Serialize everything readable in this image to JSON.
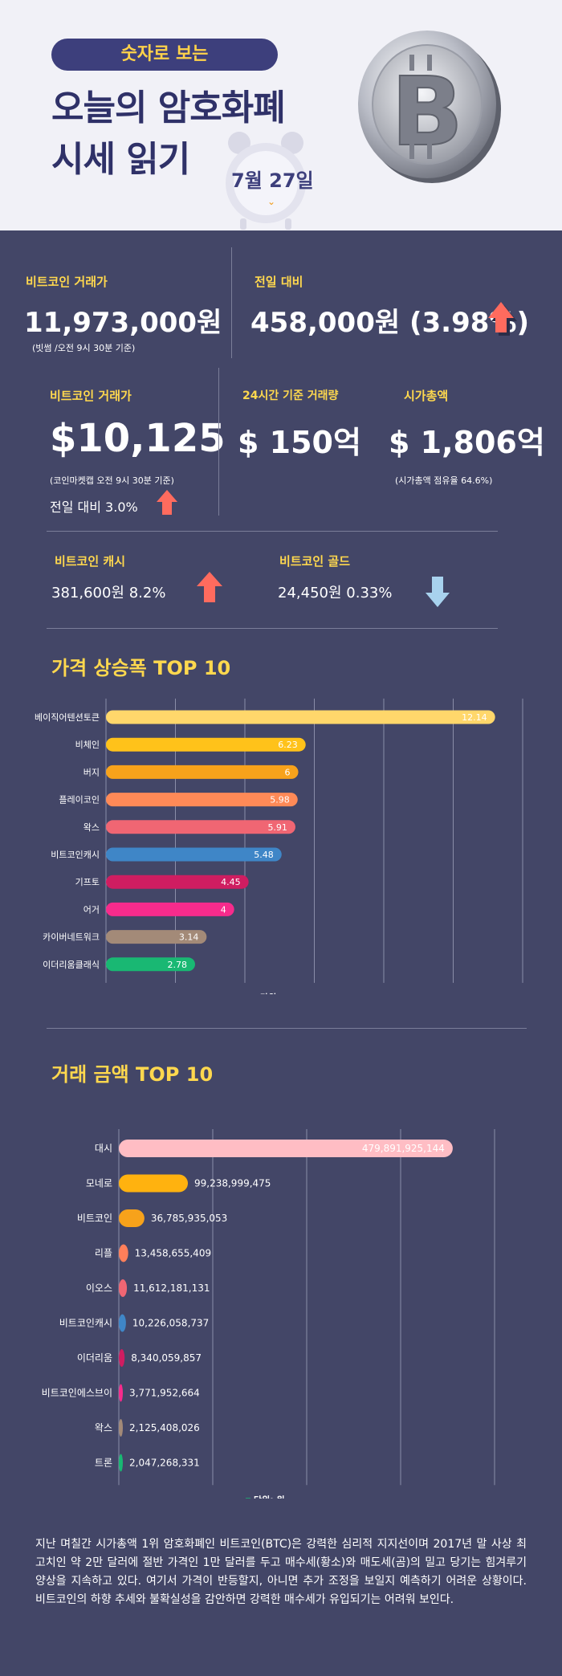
{
  "header": {
    "pill": "숫자로 보는",
    "title_line1": "오늘의 암호화폐",
    "title_line2": "시세 읽기",
    "date": "7월 27일"
  },
  "stats": {
    "btc_krw_label": "비트코인 거래가",
    "btc_krw_value": "11,973,000원",
    "btc_krw_note": "(빗썸 /오전 9시 30분 기준)",
    "prev_label": "전일 대비",
    "prev_value": "458,000원 (3.98%)",
    "btc_usd_label": "비트코인 거래가",
    "btc_usd_value": "$10,125",
    "btc_usd_note": "(코인마켓캡 오전 9시 30분 기준)",
    "btc_usd_change": "전일 대비 3.0%",
    "vol_label": "24시간 기준 거래량",
    "vol_value": "$ 150억",
    "cap_label": "시가총액",
    "cap_value": "$ 1,806억",
    "cap_note": "(시가총액 점유율 64.6%)",
    "cash_label": "비트코인 캐시",
    "cash_value": "381,600원  8.2%",
    "gold_label": "비트코인 골드",
    "gold_value": "24,450원   0.33%"
  },
  "chart_data": [
    {
      "type": "bar",
      "title": "가격 상승폭 TOP 10",
      "categories": [
        "베이직어텐션토큰",
        "비체인",
        "버지",
        "플레이코인",
        "왁스",
        "비트코인캐시",
        "기프토",
        "어거",
        "카이버네트워크",
        "이더리움클래식"
      ],
      "values": [
        12.14,
        6.23,
        6,
        5.98,
        5.91,
        5.48,
        4.45,
        4,
        3.14,
        2.78
      ],
      "value_labels": [
        "12.14",
        "6.23",
        "6",
        "5.98",
        "5.91",
        "5.48",
        "4.45",
        "4",
        "3.14",
        "2.78"
      ],
      "colors": [
        "#ffd76b",
        "#ffc21a",
        "#f7a21b",
        "#ff8a57",
        "#f06673",
        "#3f86c7",
        "#cf1d61",
        "#f72b8c",
        "#a38a78",
        "#19b873"
      ],
      "legend": "단위:%",
      "xlim": [
        0,
        13
      ]
    },
    {
      "type": "bar",
      "title": "거래 금액 TOP 10",
      "categories": [
        "대시",
        "모네로",
        "비트코인",
        "리플",
        "이오스",
        "비트코인캐시",
        "이더리움",
        "비트코인에스브이",
        "왁스",
        "트론"
      ],
      "values": [
        479891925144,
        99238999475,
        36785935053,
        13458655409,
        11612181131,
        10226058737,
        8340059857,
        3771952664,
        2125408026,
        2047268331
      ],
      "value_labels": [
        "479,891,925,144",
        "99,238,999,475",
        "36,785,935,053",
        "13,458,655,409",
        "11,612,181,131",
        "10,226,058,737",
        "8,340,059,857",
        "3,771,952,664",
        "2,125,408,026",
        "2,047,268,331"
      ],
      "colors": [
        "#ffbdc4",
        "#ffb20f",
        "#f7a21b",
        "#ff7f5a",
        "#f06673",
        "#3f86c7",
        "#cf1d61",
        "#f72b8c",
        "#a38a78",
        "#19b873"
      ],
      "legend": "단위: 원",
      "xlim": [
        0,
        540000000000
      ]
    }
  ],
  "body_text": "지난 며칠간 시가총액 1위 암호화폐인 비트코인(BTC)은 강력한 심리적 지지선이며 2017년 말 사상 최고치인 약 2만 달러에 절반 가격인 1만 달러를 두고 매수세(황소)와 매도세(곰)의 밀고 당기는 힘겨루기 양상을 지속하고 있다. 여기서 가격이 반등할지, 아니면 추가 조정을 보일지 예측하기 어려운 상황이다. 비트코인의 하향 추세와 불확실성을 감안하면 강력한 매수세가 유입되기는 어려워 보인다."
}
